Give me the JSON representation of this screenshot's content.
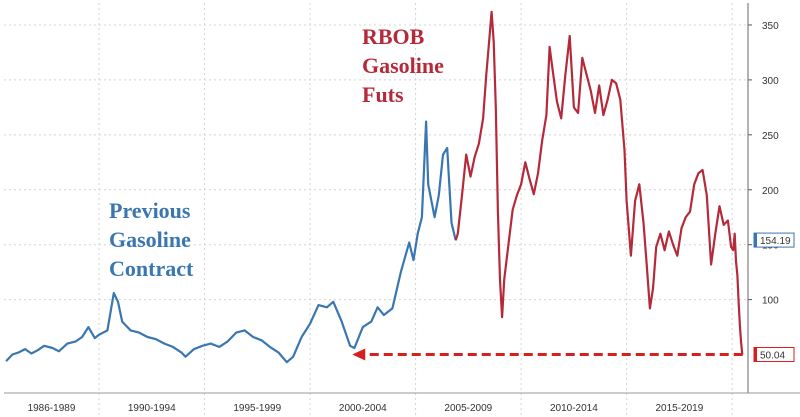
{
  "chart_data": {
    "type": "line",
    "title": "",
    "xlabel": "",
    "ylabel": "",
    "ylim": [
      15,
      370
    ],
    "xlim": [
      1985.5,
      2020.75
    ],
    "y_ticks": [
      100,
      150,
      200,
      250,
      300,
      350
    ],
    "x_periods": [
      "1986-1989",
      "1990-1994",
      "1995-1999",
      "2000-2004",
      "2005-2009",
      "2010-2014",
      "2015-2019"
    ],
    "x_period_bounds": [
      [
        1985.5,
        1990
      ],
      [
        1990,
        1995
      ],
      [
        1995,
        2000
      ],
      [
        2000,
        2005
      ],
      [
        2005,
        2010
      ],
      [
        2010,
        2015
      ],
      [
        2015,
        2020
      ],
      [
        2020,
        2020.75
      ]
    ],
    "grid": true,
    "annotations": [
      {
        "text": [
          "Previous",
          "Gasoline",
          "Contract"
        ],
        "color": "#3a76b0"
      },
      {
        "text": [
          "RBOB",
          "Gasoline",
          "Futs"
        ],
        "color": "#b52a3a"
      }
    ],
    "last_value_tags": [
      {
        "value": "154.19",
        "numeric": 154.19,
        "color": "#3a76b0"
      },
      {
        "value": "50.04",
        "numeric": 50.04,
        "color": "#d62020"
      }
    ],
    "reference_arrow": {
      "value": 50.04,
      "from_x": 2020.5,
      "to_x": 2002.0,
      "color": "#d62020"
    },
    "series": [
      {
        "color": "#3a76b0",
        "points": [
          [
            1985.6,
            44
          ],
          [
            1985.9,
            50
          ],
          [
            1986.2,
            52
          ],
          [
            1986.5,
            55
          ],
          [
            1986.8,
            51
          ],
          [
            1987.1,
            54
          ],
          [
            1987.4,
            58
          ],
          [
            1987.8,
            56
          ],
          [
            1988.1,
            53
          ],
          [
            1988.5,
            60
          ],
          [
            1988.9,
            62
          ],
          [
            1989.2,
            66
          ],
          [
            1989.5,
            75
          ],
          [
            1989.8,
            65
          ],
          [
            1990.0,
            68
          ],
          [
            1990.4,
            72
          ],
          [
            1990.7,
            106
          ],
          [
            1990.9,
            98
          ],
          [
            1991.1,
            80
          ],
          [
            1991.5,
            72
          ],
          [
            1991.9,
            70
          ],
          [
            1992.3,
            66
          ],
          [
            1992.7,
            64
          ],
          [
            1993.1,
            60
          ],
          [
            1993.5,
            57
          ],
          [
            1993.9,
            52
          ],
          [
            1994.1,
            48
          ],
          [
            1994.5,
            55
          ],
          [
            1994.9,
            58
          ],
          [
            1995.3,
            60
          ],
          [
            1995.7,
            57
          ],
          [
            1996.1,
            62
          ],
          [
            1996.5,
            70
          ],
          [
            1996.9,
            72
          ],
          [
            1997.3,
            66
          ],
          [
            1997.7,
            63
          ],
          [
            1998.1,
            57
          ],
          [
            1998.5,
            52
          ],
          [
            1998.9,
            43
          ],
          [
            1999.2,
            48
          ],
          [
            1999.6,
            66
          ],
          [
            2000.0,
            78
          ],
          [
            2000.4,
            95
          ],
          [
            2000.8,
            93
          ],
          [
            2001.1,
            98
          ],
          [
            2001.5,
            80
          ],
          [
            2001.9,
            58
          ],
          [
            2002.1,
            56
          ],
          [
            2002.5,
            75
          ],
          [
            2002.9,
            80
          ],
          [
            2003.2,
            93
          ],
          [
            2003.5,
            86
          ],
          [
            2003.9,
            92
          ],
          [
            2004.3,
            125
          ],
          [
            2004.7,
            152
          ],
          [
            2004.9,
            136
          ],
          [
            2005.1,
            160
          ],
          [
            2005.3,
            175
          ],
          [
            2005.5,
            262
          ],
          [
            2005.6,
            205
          ],
          [
            2005.9,
            175
          ],
          [
            2006.1,
            195
          ],
          [
            2006.3,
            232
          ],
          [
            2006.5,
            238
          ],
          [
            2006.7,
            170
          ],
          [
            2006.9,
            154
          ]
        ]
      },
      {
        "color": "#b52a3a",
        "points": [
          [
            2006.9,
            154
          ],
          [
            2007.0,
            160
          ],
          [
            2007.2,
            195
          ],
          [
            2007.4,
            232
          ],
          [
            2007.6,
            212
          ],
          [
            2007.8,
            230
          ],
          [
            2008.0,
            242
          ],
          [
            2008.2,
            265
          ],
          [
            2008.35,
            305
          ],
          [
            2008.5,
            338
          ],
          [
            2008.6,
            362
          ],
          [
            2008.7,
            335
          ],
          [
            2008.8,
            275
          ],
          [
            2008.9,
            180
          ],
          [
            2009.0,
            118
          ],
          [
            2009.1,
            84
          ],
          [
            2009.2,
            118
          ],
          [
            2009.4,
            150
          ],
          [
            2009.6,
            182
          ],
          [
            2009.8,
            195
          ],
          [
            2010.0,
            205
          ],
          [
            2010.2,
            225
          ],
          [
            2010.4,
            210
          ],
          [
            2010.6,
            196
          ],
          [
            2010.8,
            215
          ],
          [
            2011.0,
            245
          ],
          [
            2011.2,
            268
          ],
          [
            2011.35,
            330
          ],
          [
            2011.5,
            308
          ],
          [
            2011.7,
            280
          ],
          [
            2011.9,
            265
          ],
          [
            2012.1,
            305
          ],
          [
            2012.3,
            340
          ],
          [
            2012.5,
            275
          ],
          [
            2012.7,
            270
          ],
          [
            2012.9,
            320
          ],
          [
            2013.1,
            305
          ],
          [
            2013.3,
            290
          ],
          [
            2013.5,
            270
          ],
          [
            2013.7,
            295
          ],
          [
            2013.9,
            268
          ],
          [
            2014.1,
            282
          ],
          [
            2014.3,
            300
          ],
          [
            2014.5,
            297
          ],
          [
            2014.7,
            282
          ],
          [
            2014.9,
            236
          ],
          [
            2015.0,
            190
          ],
          [
            2015.2,
            140
          ],
          [
            2015.4,
            190
          ],
          [
            2015.6,
            205
          ],
          [
            2015.8,
            170
          ],
          [
            2015.95,
            132
          ],
          [
            2016.1,
            92
          ],
          [
            2016.25,
            110
          ],
          [
            2016.4,
            148
          ],
          [
            2016.6,
            160
          ],
          [
            2016.8,
            145
          ],
          [
            2017.0,
            162
          ],
          [
            2017.2,
            150
          ],
          [
            2017.4,
            140
          ],
          [
            2017.6,
            165
          ],
          [
            2017.8,
            175
          ],
          [
            2018.0,
            180
          ],
          [
            2018.2,
            205
          ],
          [
            2018.4,
            215
          ],
          [
            2018.6,
            218
          ],
          [
            2018.8,
            195
          ],
          [
            2019.0,
            132
          ],
          [
            2019.2,
            160
          ],
          [
            2019.4,
            185
          ],
          [
            2019.6,
            168
          ],
          [
            2019.8,
            172
          ],
          [
            2019.95,
            148
          ],
          [
            2020.05,
            145
          ],
          [
            2020.12,
            160
          ],
          [
            2020.18,
            135
          ],
          [
            2020.25,
            122
          ],
          [
            2020.3,
            100
          ],
          [
            2020.36,
            78
          ],
          [
            2020.42,
            62
          ],
          [
            2020.48,
            50.04
          ]
        ]
      }
    ]
  }
}
